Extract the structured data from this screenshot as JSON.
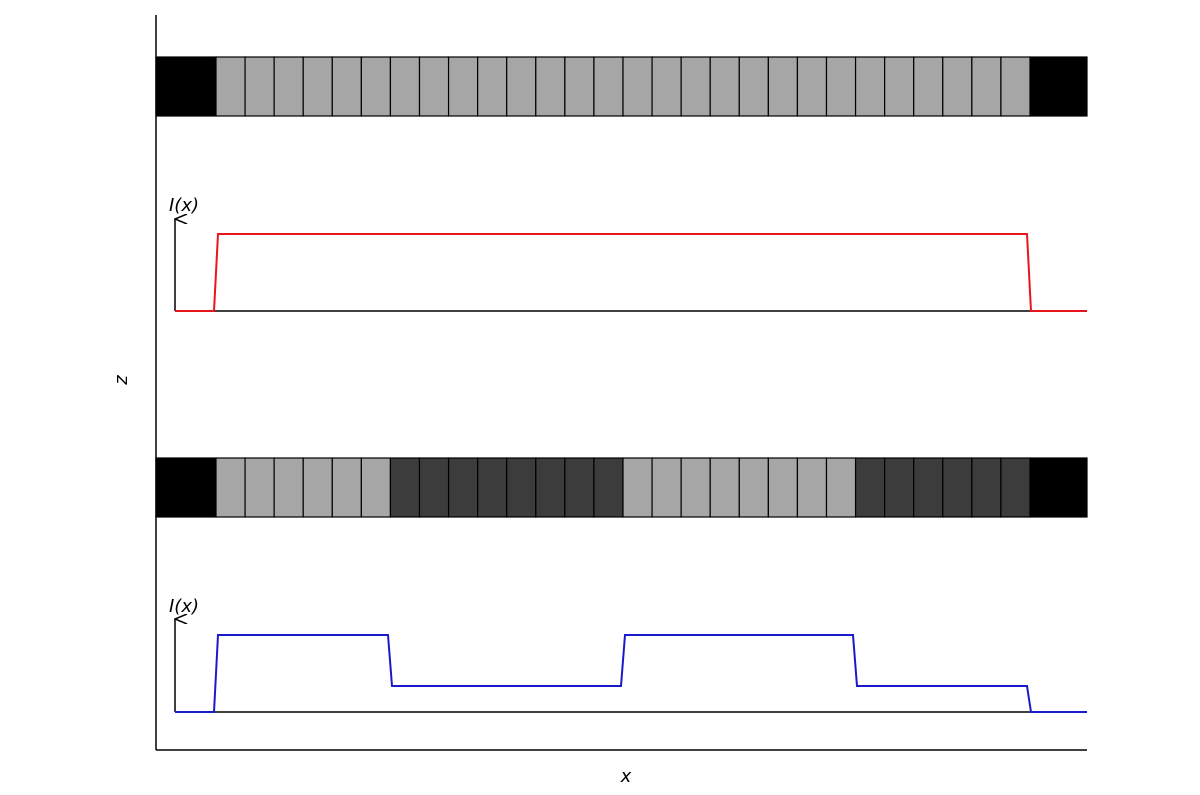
{
  "axes": {
    "z_label": "z",
    "x_label": "x"
  },
  "panels": [
    {
      "label": "I(x)"
    },
    {
      "label": "I(x)"
    }
  ]
}
